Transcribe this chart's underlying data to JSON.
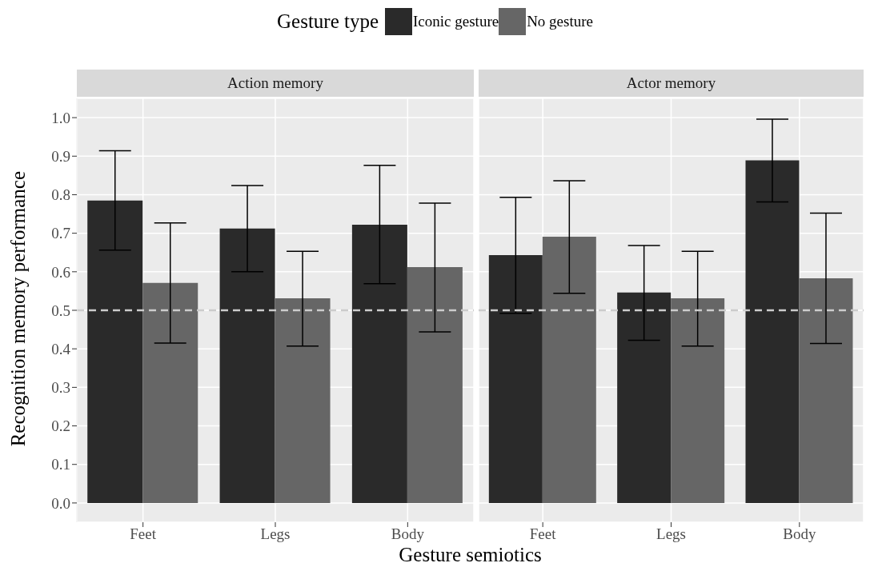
{
  "chart_data": [
    {
      "type": "bar",
      "title": "Action memory",
      "ylabel": "Recognition memory performance",
      "xlabel": "Gesture semiotics",
      "legend_title": "Gesture type",
      "legend": "top",
      "grid": true,
      "categories": [
        "Feet",
        "Legs",
        "Body"
      ],
      "series": [
        {
          "name": "Iconic gesture",
          "color": "#2a2a2a",
          "values": [
            0.785,
            0.712,
            0.722
          ],
          "errors": [
            [
              0.656,
              0.914
            ],
            [
              0.6,
              0.824
            ],
            [
              0.569,
              0.876
            ]
          ]
        },
        {
          "name": "No gesture",
          "color": "#666666",
          "values": [
            0.571,
            0.531,
            0.612
          ],
          "errors": [
            [
              0.415,
              0.727
            ],
            [
              0.407,
              0.653
            ],
            [
              0.444,
              0.778
            ]
          ]
        }
      ],
      "ylim": [
        -0.05,
        1.05
      ],
      "yticks": [
        {
          "value": 0,
          "label": "0.0"
        },
        {
          "value": 0.1,
          "label": "0.1"
        },
        {
          "value": 0.2,
          "label": "0.2"
        },
        {
          "value": 0.3,
          "label": "0.3"
        },
        {
          "value": 0.4,
          "label": "0.4"
        },
        {
          "value": 0.5,
          "label": "0.5"
        },
        {
          "value": 0.6,
          "label": "0.6"
        },
        {
          "value": 0.7,
          "label": "0.7"
        },
        {
          "value": 0.8,
          "label": "0.8"
        },
        {
          "value": 0.9,
          "label": "0.9"
        },
        {
          "value": 1,
          "label": "1.0"
        }
      ],
      "ref_lines": [
        {
          "axis": "y",
          "value": 0.5,
          "color": "#cccccc",
          "line_style": "dashed"
        }
      ]
    },
    {
      "type": "bar",
      "title": "Actor memory",
      "grid": true,
      "tick_labels": "x",
      "categories": [
        "Feet",
        "Legs",
        "Body"
      ],
      "series": [
        {
          "color": "#2a2a2a",
          "values": [
            0.643,
            0.546,
            0.889
          ],
          "errors": [
            [
              0.492,
              0.793
            ],
            [
              0.422,
              0.668
            ],
            [
              0.781,
              0.996
            ]
          ]
        },
        {
          "color": "#666666",
          "values": [
            0.691,
            0.531,
            0.583
          ],
          "errors": [
            [
              0.544,
              0.836
            ],
            [
              0.407,
              0.653
            ],
            [
              0.414,
              0.752
            ]
          ]
        }
      ],
      "ylim": [
        -0.05,
        1.05
      ],
      "yticks": [
        0,
        0.1,
        0.2,
        0.3,
        0.4,
        0.5,
        0.6,
        0.7,
        0.8,
        0.9,
        1
      ],
      "ref_lines": [
        {
          "axis": "y",
          "value": 0.5,
          "color": "#cccccc",
          "line_style": "dashed"
        }
      ]
    }
  ]
}
